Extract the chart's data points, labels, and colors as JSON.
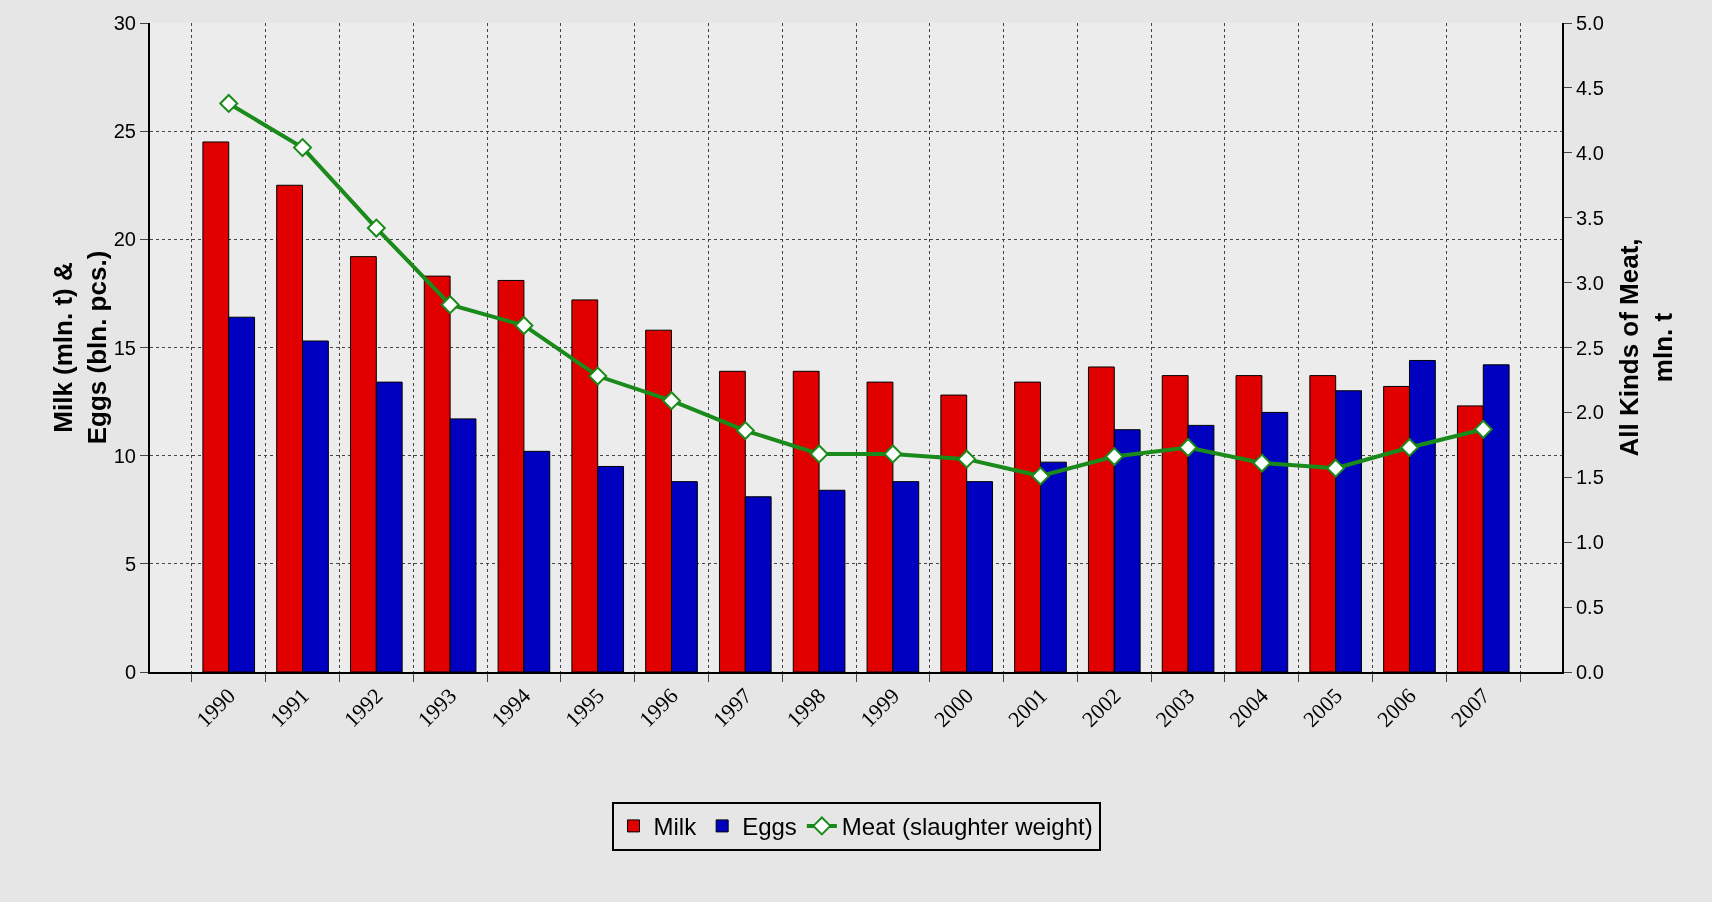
{
  "chart_data": {
    "type": "bar",
    "ylabel": "Milk (mln. t) &\nEggs (bln. pcs.)",
    "y2label": "All Kinds of Meat,\nmln. t",
    "categories": [
      "1990",
      "1991",
      "1992",
      "1993",
      "1994",
      "1995",
      "1996",
      "1997",
      "1998",
      "1999",
      "2000",
      "2001",
      "2002",
      "2003",
      "2004",
      "2005",
      "2006",
      "2007"
    ],
    "series": [
      {
        "name": "Milk",
        "color": "#e00000",
        "values": [
          24.5,
          22.5,
          19.2,
          18.3,
          18.1,
          17.2,
          15.8,
          13.9,
          13.9,
          13.4,
          12.8,
          13.4,
          14.1,
          13.7,
          13.7,
          13.7,
          13.2,
          12.3
        ]
      },
      {
        "name": "Eggs",
        "color": "#0000c0",
        "values": [
          16.4,
          15.3,
          13.4,
          11.7,
          10.2,
          9.5,
          8.8,
          8.1,
          8.4,
          8.8,
          8.8,
          9.7,
          11.2,
          11.4,
          12.0,
          13.0,
          14.4,
          14.2
        ]
      },
      {
        "name": "Meat (slaughter weight)",
        "type": "line",
        "axis": "y2",
        "marker": "diamond",
        "color": "#1a8a1a",
        "values": [
          4.38,
          4.04,
          3.42,
          2.83,
          2.67,
          2.28,
          2.09,
          1.86,
          1.68,
          1.68,
          1.64,
          1.51,
          1.66,
          1.73,
          1.61,
          1.57,
          1.73,
          1.87
        ]
      }
    ],
    "ylim": [
      0,
      30
    ],
    "yticks": [
      0,
      5,
      10,
      15,
      20,
      25,
      30
    ],
    "y2lim": [
      0,
      5
    ],
    "y2ticks": [
      {
        "value": 0,
        "label": "0.0"
      },
      {
        "value": 0.5,
        "label": "0.5"
      },
      {
        "value": 1,
        "label": "1.0"
      },
      {
        "value": 1.5,
        "label": "1.5"
      },
      {
        "value": 2,
        "label": "2.0"
      },
      {
        "value": 2.5,
        "label": "2.5"
      },
      {
        "value": 3,
        "label": "3.0"
      },
      {
        "value": 3.5,
        "label": "3.5"
      },
      {
        "value": 4,
        "label": "4.0"
      },
      {
        "value": 4.5,
        "label": "4.5"
      },
      {
        "value": 5,
        "label": "5.0"
      }
    ],
    "grid": true,
    "legend": "bottom"
  }
}
